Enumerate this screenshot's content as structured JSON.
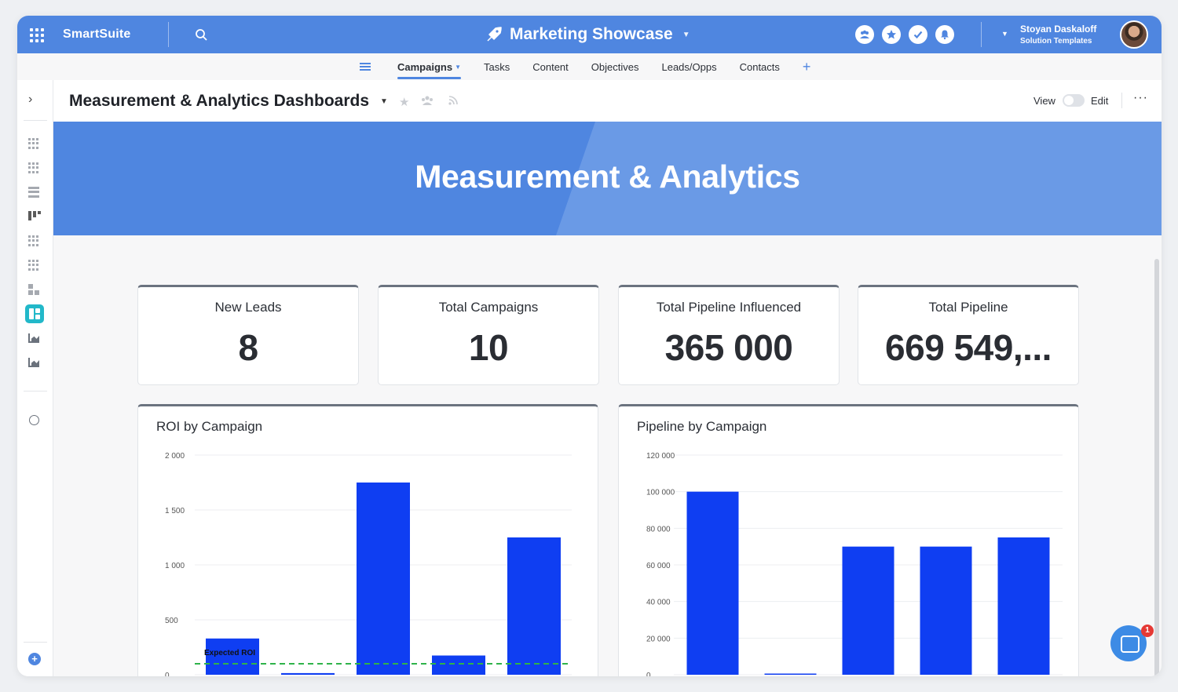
{
  "topbar": {
    "brand": "SmartSuite",
    "workspace_title": "Marketing Showcase",
    "user_name": "Stoyan Daskaloff",
    "user_subtitle": "Solution Templates"
  },
  "tabs": [
    {
      "label": "Campaigns",
      "active": true
    },
    {
      "label": "Tasks"
    },
    {
      "label": "Content"
    },
    {
      "label": "Objectives"
    },
    {
      "label": "Leads/Opps"
    },
    {
      "label": "Contacts"
    }
  ],
  "header": {
    "title": "Measurement & Analytics Dashboards",
    "view_label": "View",
    "edit_label": "Edit"
  },
  "banner": {
    "title": "Measurement & Analytics"
  },
  "kpis": [
    {
      "label": "New Leads",
      "value": "8"
    },
    {
      "label": "Total Campaigns",
      "value": "10"
    },
    {
      "label": "Total Pipeline Influenced",
      "value": "365 000"
    },
    {
      "label": "Total Pipeline",
      "value": "669 549,..."
    }
  ],
  "chat": {
    "badge": "1"
  },
  "colors": {
    "brand": "#4f86e0",
    "bar": "#0f3ef2",
    "expected_line": "#2fb34a",
    "accent_teal": "#22b8c9"
  },
  "chart_data": [
    {
      "type": "bar",
      "title": "ROI by Campaign",
      "ylim": [
        0,
        2000
      ],
      "yticks": [
        "2 000",
        "1 500",
        "1 000",
        "500",
        "0"
      ],
      "ytick_values": [
        2000,
        1500,
        1000,
        500,
        0
      ],
      "values": [
        330,
        15,
        1750,
        175,
        1250
      ],
      "reference_line": {
        "label": "Expected ROI",
        "value": 100
      }
    },
    {
      "type": "bar",
      "title": "Pipeline by Campaign",
      "ylim": [
        0,
        120000
      ],
      "yticks": [
        "120 000",
        "100 000",
        "80 000",
        "60 000",
        "40 000",
        "20 000",
        "0"
      ],
      "ytick_values": [
        120000,
        100000,
        80000,
        60000,
        40000,
        20000,
        0
      ],
      "values": [
        100000,
        500,
        70000,
        70000,
        75000
      ]
    }
  ]
}
